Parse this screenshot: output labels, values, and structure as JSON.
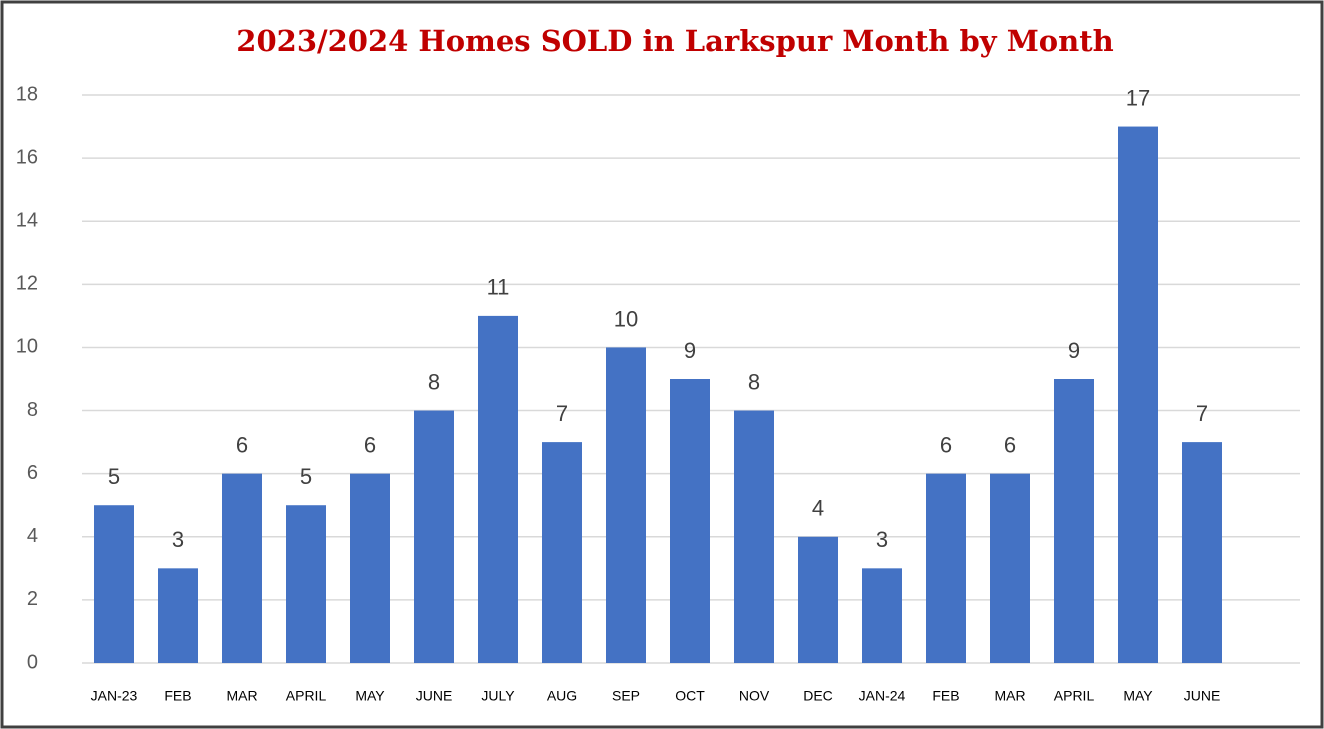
{
  "chart_data": {
    "type": "bar",
    "title": "2023/2024 Homes SOLD in Larkspur Month by Month",
    "categories": [
      "JAN-23",
      "FEB",
      "MAR",
      "APRIL",
      "MAY",
      "JUNE",
      "JULY",
      "AUG",
      "SEP",
      "OCT",
      "NOV",
      "DEC",
      "JAN-24",
      "FEB",
      "MAR",
      "APRIL",
      "MAY",
      "JUNE"
    ],
    "values": [
      5,
      3,
      6,
      5,
      6,
      8,
      11,
      7,
      10,
      9,
      8,
      4,
      3,
      6,
      6,
      9,
      17,
      7
    ],
    "color": "#4472c4",
    "ylim": [
      0,
      18
    ],
    "yticks": [
      0,
      2,
      4,
      6,
      8,
      10,
      12,
      14,
      16,
      18
    ],
    "grid": true
  }
}
